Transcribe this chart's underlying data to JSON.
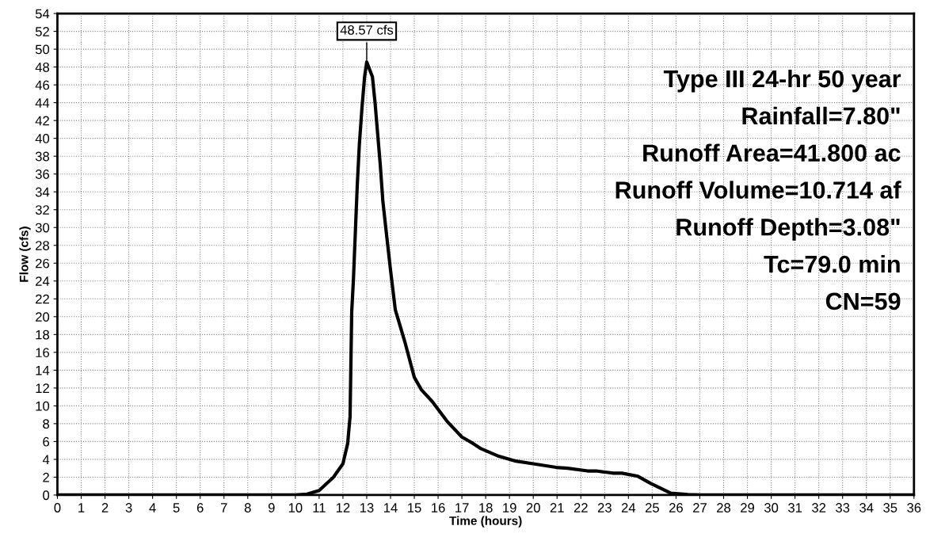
{
  "chart_data": {
    "type": "line",
    "xlabel": "Time (hours)",
    "ylabel": "Flow (cfs)",
    "x": [
      0,
      5,
      10,
      10.5,
      11.0,
      11.6,
      12.0,
      12.2,
      12.3,
      12.37,
      12.44,
      12.53,
      12.6,
      12.69,
      12.8,
      12.91,
      13.0,
      13.24,
      13.35,
      13.46,
      13.57,
      13.68,
      13.85,
      14.01,
      14.2,
      14.6,
      15.0,
      15.3,
      15.75,
      16.4,
      17.0,
      17.46,
      17.8,
      18.5,
      19.27,
      20.0,
      20.96,
      21.44,
      22.28,
      22.64,
      23.37,
      23.73,
      24.4,
      24.94,
      25.78,
      26.5,
      27.0,
      30,
      36
    ],
    "series": [
      {
        "color": "#000000",
        "values": [
          0,
          0,
          0,
          0.1,
          0.5,
          2,
          3.5,
          5.8,
          8.8,
          20.6,
          24.1,
          30.0,
          34.6,
          39.3,
          43.4,
          46.9,
          48.57,
          46.9,
          44.0,
          40.5,
          37.0,
          32.9,
          28.8,
          25.0,
          20.8,
          17.2,
          13.2,
          11.8,
          10.5,
          8.2,
          6.5,
          5.8,
          5.2,
          4.4,
          3.8,
          3.5,
          3.1,
          3.0,
          2.7,
          2.7,
          2.45,
          2.45,
          2.1,
          1.3,
          0.2,
          0.06,
          0,
          0,
          0
        ]
      }
    ],
    "xlim": [
      0,
      36
    ],
    "ylim": [
      0,
      54
    ],
    "xticks": [
      0,
      1,
      2,
      3,
      4,
      5,
      6,
      7,
      8,
      9,
      10,
      11,
      12,
      13,
      14,
      15,
      16,
      17,
      18,
      19,
      20,
      21,
      22,
      23,
      24,
      25,
      26,
      27,
      28,
      29,
      30,
      31,
      32,
      33,
      34,
      35,
      36
    ],
    "yticks": [
      0,
      2,
      4,
      6,
      8,
      10,
      12,
      14,
      16,
      18,
      20,
      22,
      24,
      26,
      28,
      30,
      32,
      34,
      36,
      38,
      40,
      42,
      44,
      46,
      48,
      50,
      52,
      54
    ],
    "grid": true,
    "marker": "none",
    "line_style": "solid",
    "annotations": [
      {
        "text": "48.57 cfs",
        "x": 13.0,
        "y": 48.57
      },
      "Type III 24-hr 50 year",
      "Rainfall=7.80\"",
      "Runoff Area=41.800 ac",
      "Runoff Volume=10.714 af",
      "Runoff Depth=3.08\"",
      "Tc=79.0 min",
      "CN=59"
    ]
  }
}
